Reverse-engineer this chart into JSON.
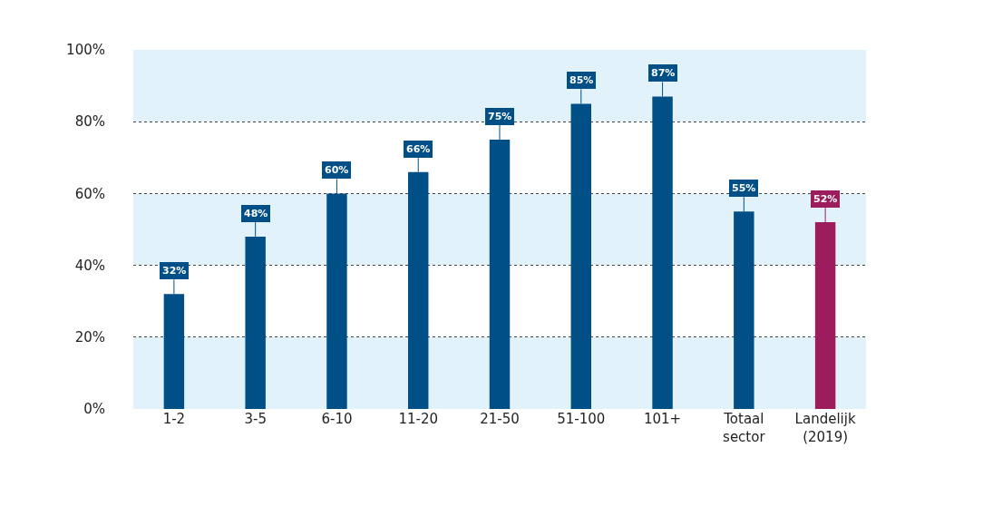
{
  "chart_data": {
    "type": "bar",
    "categories": [
      "1-2",
      "3-5",
      "6-10",
      "11-20",
      "21-50",
      "51-100",
      "101+",
      "Totaal sector",
      "Landelijk (2019)"
    ],
    "values": [
      32,
      48,
      60,
      66,
      75,
      85,
      87,
      55,
      52
    ],
    "colors": [
      "#005087",
      "#005087",
      "#005087",
      "#005087",
      "#005087",
      "#005087",
      "#005087",
      "#005087",
      "#9c1c5d"
    ],
    "value_labels": [
      "32%",
      "48%",
      "60%",
      "66%",
      "75%",
      "85%",
      "87%",
      "55%",
      "52%"
    ],
    "ylim": [
      0,
      100
    ],
    "yticks": [
      {
        "value": 0,
        "label": "0%"
      },
      {
        "value": 20,
        "label": "20%"
      },
      {
        "value": 40,
        "label": "40%"
      },
      {
        "value": 60,
        "label": "60%"
      },
      {
        "value": 80,
        "label": "80%"
      },
      {
        "value": 100,
        "label": "100%"
      }
    ],
    "bands": [
      {
        "axis": "y",
        "from": 0,
        "to": 20,
        "color": "#e1f2fa"
      },
      {
        "axis": "y",
        "from": 40,
        "to": 60,
        "color": "#e1f2fa"
      },
      {
        "axis": "y",
        "from": 80,
        "to": 100,
        "color": "#e1f2fa"
      }
    ],
    "grid": "y",
    "line_style": "dotted",
    "legend": false
  }
}
